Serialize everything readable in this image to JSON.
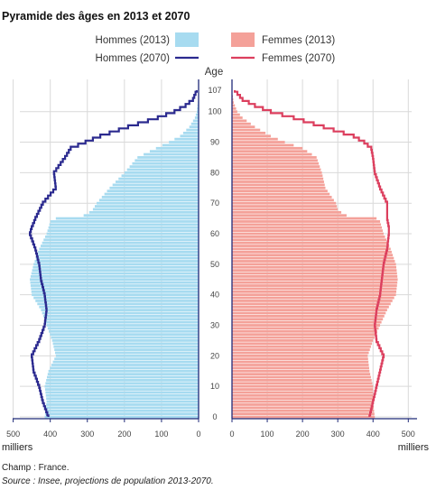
{
  "chart_data": {
    "type": "bar",
    "subtype": "population-pyramid",
    "title": "Pyramide des âges en 2013 et 2070",
    "age_axis_label": "Age",
    "x_unit_label": "milliers",
    "age_ticks": [
      0,
      10,
      20,
      30,
      40,
      50,
      60,
      70,
      80,
      90,
      100,
      107
    ],
    "age_range": [
      0,
      107
    ],
    "x_ticks_left": [
      500,
      400,
      300,
      200,
      100,
      0
    ],
    "x_ticks_right": [
      0,
      100,
      200,
      300,
      400,
      500
    ],
    "xlim": [
      0,
      520
    ],
    "grid": true,
    "colors": {
      "hommes_2013": "#a7dbf0",
      "femmes_2013": "#f4a199",
      "hommes_2070": "#2b2a8f",
      "femmes_2070": "#dc3f5e",
      "axis": "#1f2a78",
      "grid": "#d9d9d9"
    },
    "series": [
      {
        "name": "Hommes (2013)",
        "side": "left",
        "kind": "bar",
        "ages": [
          0,
          5,
          10,
          15,
          20,
          25,
          30,
          35,
          40,
          45,
          50,
          55,
          60,
          62,
          64,
          65,
          66,
          67,
          68,
          70,
          75,
          80,
          85,
          88,
          90,
          92,
          95,
          98,
          100,
          103,
          107
        ],
        "values": [
          415,
          410,
          415,
          405,
          385,
          395,
          410,
          425,
          450,
          455,
          445,
          430,
          410,
          405,
          400,
          385,
          310,
          295,
          285,
          275,
          240,
          200,
          165,
          115,
          80,
          50,
          25,
          10,
          5,
          2,
          0
        ]
      },
      {
        "name": "Femmes (2013)",
        "side": "right",
        "kind": "bar",
        "ages": [
          0,
          5,
          10,
          15,
          20,
          25,
          30,
          35,
          40,
          45,
          50,
          55,
          60,
          62,
          64,
          65,
          66,
          67,
          68,
          70,
          75,
          80,
          85,
          88,
          90,
          92,
          95,
          98,
          100,
          103,
          107
        ],
        "values": [
          405,
          400,
          400,
          390,
          385,
          400,
          420,
          440,
          465,
          470,
          465,
          450,
          430,
          425,
          420,
          410,
          325,
          310,
          300,
          295,
          265,
          255,
          240,
          200,
          150,
          110,
          65,
          30,
          15,
          5,
          0
        ]
      },
      {
        "name": "Hommes (2070)",
        "side": "left",
        "kind": "line",
        "ages": [
          0,
          5,
          10,
          15,
          20,
          25,
          30,
          35,
          40,
          45,
          50,
          55,
          60,
          62,
          65,
          70,
          75,
          80,
          85,
          88,
          90,
          92,
          95,
          98,
          100,
          102,
          104,
          107
        ],
        "values": [
          405,
          420,
          430,
          445,
          450,
          430,
          415,
          410,
          415,
          425,
          430,
          440,
          455,
          450,
          440,
          420,
          385,
          390,
          360,
          345,
          305,
          265,
          190,
          110,
          65,
          35,
          15,
          5
        ]
      },
      {
        "name": "Femmes (2070)",
        "side": "right",
        "kind": "line",
        "ages": [
          0,
          5,
          10,
          15,
          20,
          25,
          30,
          35,
          40,
          45,
          50,
          55,
          60,
          62,
          65,
          70,
          75,
          80,
          85,
          88,
          90,
          92,
          95,
          98,
          100,
          102,
          104,
          107
        ],
        "values": [
          390,
          400,
          410,
          420,
          430,
          410,
          405,
          410,
          420,
          425,
          430,
          440,
          445,
          445,
          440,
          440,
          420,
          405,
          400,
          395,
          375,
          345,
          260,
          175,
          110,
          65,
          30,
          8
        ]
      }
    ]
  },
  "notes": {
    "champ": "Champ : France.",
    "source": "Source : Insee, projections de population 2013-2070."
  }
}
